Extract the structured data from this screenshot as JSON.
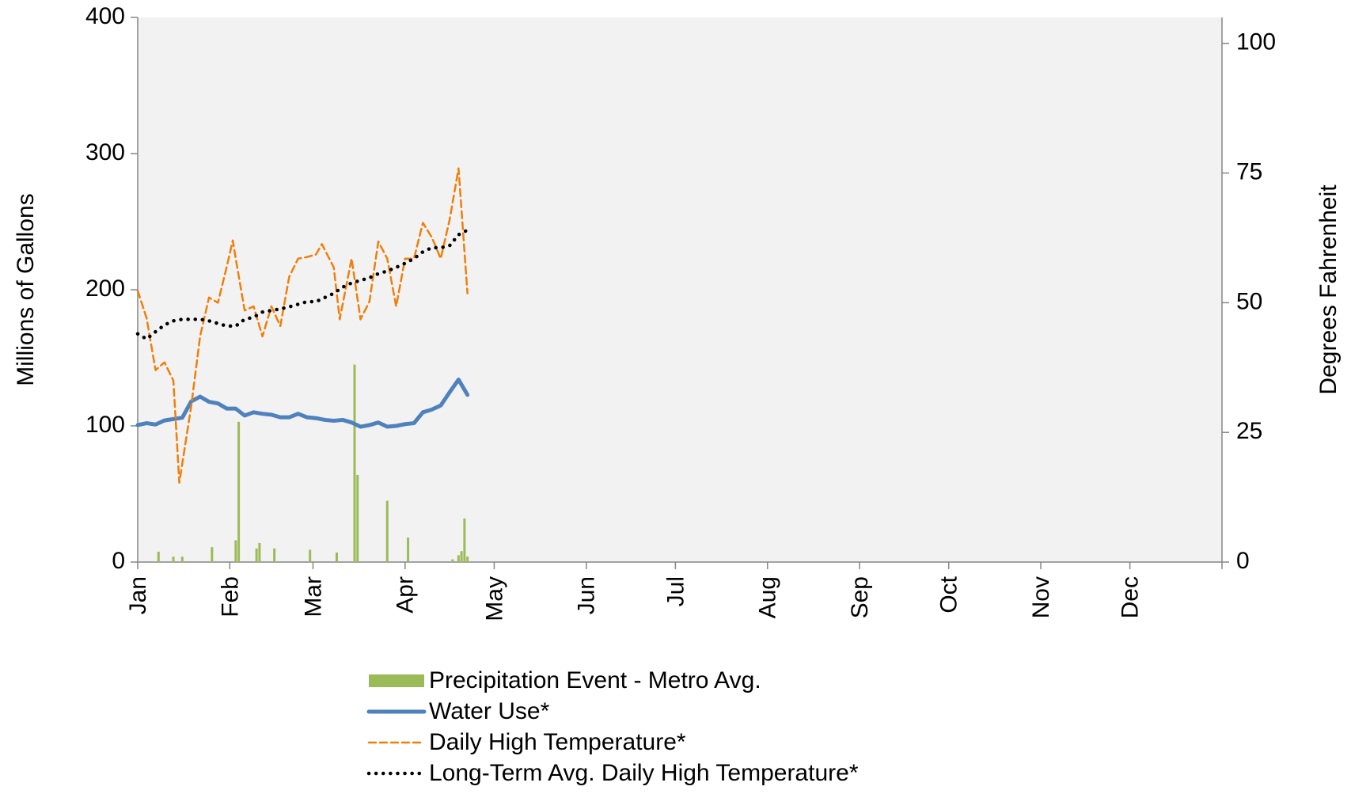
{
  "chart_data": {
    "type": "line",
    "xlabel": null,
    "ylabel": "Millions of Gallons",
    "y2label": "Degrees Fahrenheit",
    "xlim": [
      0,
      365
    ],
    "xticks": [
      {
        "value": 0,
        "label": "Jan"
      },
      {
        "value": 31,
        "label": "Feb"
      },
      {
        "value": 59,
        "label": "Mar"
      },
      {
        "value": 90,
        "label": "Apr"
      },
      {
        "value": 120,
        "label": "May"
      },
      {
        "value": 151,
        "label": "Jun"
      },
      {
        "value": 181,
        "label": "Jul"
      },
      {
        "value": 212,
        "label": "Aug"
      },
      {
        "value": 243,
        "label": "Sep"
      },
      {
        "value": 273,
        "label": "Oct"
      },
      {
        "value": 304,
        "label": "Nov"
      },
      {
        "value": 334,
        "label": "Dec"
      }
    ],
    "ylim": [
      0,
      400
    ],
    "yticks": [
      0,
      100,
      200,
      300,
      400
    ],
    "y2lim": [
      0,
      105
    ],
    "y2ticks": [
      0,
      25,
      50,
      75,
      100
    ],
    "plot_background": "#f2f2f2",
    "legend": "bottom",
    "series": [
      {
        "name": "Precipitation Event - Metro Avg.",
        "type": "bar",
        "color": "#9bbb59",
        "x": [
          7,
          12,
          15,
          25,
          33,
          34,
          40,
          41,
          46,
          58,
          67,
          73,
          74,
          84,
          91,
          106,
          108,
          109,
          110,
          111
        ],
        "values": [
          7.6,
          4,
          4,
          11,
          16,
          103,
          10,
          14,
          10,
          9,
          7,
          145,
          64,
          45,
          18,
          2,
          5,
          8,
          32,
          4
        ]
      },
      {
        "name": "Water Use*",
        "type": "line",
        "dash": "solid",
        "color": "#4f81bd",
        "x": [
          0,
          3,
          6,
          9,
          12,
          15,
          18,
          21,
          24,
          27,
          30,
          33,
          36,
          39,
          42,
          45,
          48,
          51,
          54,
          57,
          60,
          63,
          66,
          69,
          72,
          75,
          78,
          81,
          84,
          87,
          90,
          93,
          96,
          99,
          102,
          105,
          108,
          111
        ],
        "values": [
          100.6,
          102,
          101,
          104,
          105,
          106,
          118,
          121.5,
          117.7,
          116.5,
          112.7,
          112.7,
          107.6,
          110,
          108.9,
          108.2,
          106.3,
          106.3,
          108.9,
          106.3,
          105.7,
          104.4,
          103.8,
          104.4,
          102.5,
          99.4,
          100.6,
          102.5,
          99.4,
          100,
          101.3,
          102,
          110,
          112,
          115,
          124.7,
          134,
          122.8
        ]
      },
      {
        "name": "Daily High Temperature*",
        "type": "line",
        "dash": "dashed",
        "axis": "y2",
        "color": "#f07f09",
        "x": [
          0,
          3,
          6,
          9,
          12,
          14,
          18,
          21,
          24,
          27,
          30,
          32,
          33,
          36,
          39,
          42,
          45,
          48,
          51,
          54,
          57,
          60,
          62,
          66,
          68,
          72,
          75,
          78,
          81,
          84,
          87,
          90,
          93,
          96,
          99,
          102,
          105,
          108,
          111
        ],
        "values": [
          52.3,
          47,
          37,
          38.5,
          35,
          15.3,
          30,
          43.5,
          51,
          50,
          57,
          62,
          58.5,
          48.5,
          49.3,
          43.5,
          49.3,
          45.5,
          55,
          58.5,
          58.8,
          59.3,
          61.3,
          56.8,
          46.8,
          58.5,
          46.8,
          50.2,
          61.8,
          58.5,
          49.3,
          58.5,
          58.5,
          65.4,
          62.6,
          58.5,
          66,
          75.9,
          51.8
        ]
      },
      {
        "name": "Long-Term Avg. Daily High Temperature*",
        "type": "line",
        "dash": "dotted",
        "axis": "y2",
        "color": "#000000",
        "x": [
          0,
          3,
          6,
          9,
          12,
          15,
          18,
          21,
          24,
          27,
          30,
          33,
          36,
          39,
          42,
          45,
          48,
          51,
          54,
          57,
          60,
          63,
          66,
          69,
          72,
          75,
          78,
          81,
          84,
          87,
          90,
          93,
          96,
          99,
          102,
          105,
          108,
          111
        ],
        "values": [
          44,
          43,
          44.4,
          45.7,
          46.5,
          46.8,
          46.8,
          46.8,
          46.5,
          46,
          45.5,
          45.5,
          46.8,
          47.2,
          48.2,
          48.5,
          48.8,
          49.2,
          49.7,
          50.2,
          50.2,
          51,
          51.8,
          53,
          53.8,
          54.3,
          54.8,
          55.6,
          56.1,
          56.8,
          57.6,
          58.5,
          59.8,
          60.6,
          60.6,
          61,
          63.1,
          64
        ]
      }
    ]
  }
}
